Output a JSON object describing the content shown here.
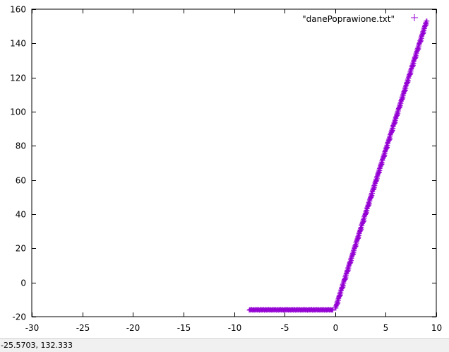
{
  "colors": {
    "series": "#9400d3",
    "axis": "#000000",
    "background": "#ffffff",
    "statusbar": "#f0f0f0"
  },
  "status_bar": {
    "coordinates": "-25.5703,  132.333"
  },
  "chart_data": {
    "type": "scatter",
    "title": "",
    "xlabel": "",
    "ylabel": "",
    "xlim": [
      -30,
      10
    ],
    "ylim": [
      -20,
      160
    ],
    "x_ticks": [
      -30,
      -25,
      -20,
      -15,
      -10,
      -5,
      0,
      5,
      10
    ],
    "y_ticks": [
      -20,
      0,
      20,
      40,
      60,
      80,
      100,
      120,
      140,
      160
    ],
    "x_tick_labels": [
      "-30",
      "-25",
      "-20",
      "-15",
      "-10",
      "-5",
      "0",
      "5",
      "10"
    ],
    "y_tick_labels": [
      "-20",
      "0",
      "20",
      "40",
      "60",
      "80",
      "100",
      "120",
      "140",
      "160"
    ],
    "grid": false,
    "legend_position": "top-right",
    "marker": "plus",
    "series": [
      {
        "name": "\"danePoprawione.txt\"",
        "segments": [
          {
            "description": "flat",
            "x_start": -8.5,
            "x_end": -0.2,
            "y": -16
          },
          {
            "description": "rising",
            "x_start": 0.0,
            "y_start": -15,
            "x_end": 9.0,
            "y_end": 153
          }
        ]
      }
    ]
  }
}
